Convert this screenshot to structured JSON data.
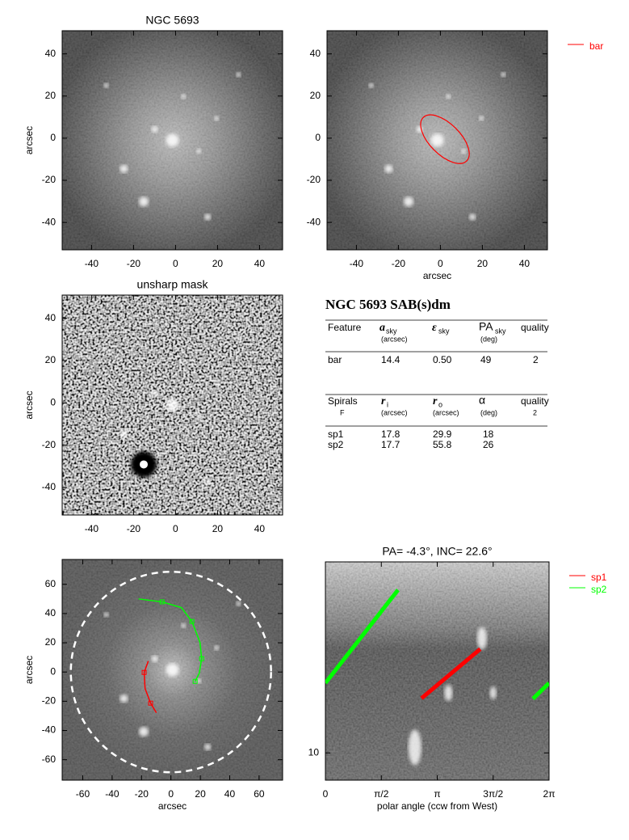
{
  "chart_data": [
    {
      "type": "image",
      "title": "NGC 5693",
      "ylabel": "arcsec",
      "xlim": [
        -54,
        51
      ],
      "ylim": [
        -53,
        51
      ],
      "xticks": [
        -40,
        -20,
        0,
        20,
        40
      ],
      "yticks": [
        -40,
        -20,
        0,
        20,
        40
      ]
    },
    {
      "type": "image",
      "xlabel": "arcsec",
      "xlim": [
        -54,
        51
      ],
      "ylim": [
        -53,
        51
      ],
      "xticks": [
        -40,
        -20,
        0,
        20,
        40
      ],
      "yticks": [
        -40,
        -20,
        0,
        20,
        40
      ],
      "legend": "right",
      "legend_entries": [
        {
          "name": "bar",
          "color": "#ff0000"
        }
      ]
    },
    {
      "type": "image",
      "title": "unsharp mask",
      "ylabel": "arcsec",
      "xlim": [
        -54,
        51
      ],
      "ylim": [
        -53,
        51
      ],
      "xticks": [
        -40,
        -20,
        0,
        20,
        40
      ],
      "yticks": [
        -40,
        -20,
        0,
        20,
        40
      ]
    },
    {
      "type": "image",
      "xlabel": "arcsec",
      "ylabel": "arcsec",
      "xlim": [
        -74,
        76
      ],
      "ylim": [
        -74,
        77
      ],
      "xticks": [
        -60,
        -40,
        -20,
        0,
        20,
        40,
        60
      ],
      "yticks": [
        -60,
        -40,
        -20,
        0,
        20,
        40,
        60
      ],
      "series": [
        {
          "color": "#00ff00",
          "x": [
            -22,
            -6,
            7.2,
            14.3,
            19.8,
            20.9,
            19.3,
            16.5
          ],
          "values": [
            50,
            48,
            44,
            34.6,
            20.2,
            9.1,
            -0.8,
            -6.4
          ]
        },
        {
          "color": "#ff0000",
          "x": [
            -15.4,
            -18.2,
            -17.6,
            -13.8,
            -9.9
          ],
          "values": [
            7.5,
            -0.3,
            -11.3,
            -21.3,
            -27.9
          ]
        }
      ]
    },
    {
      "type": "line",
      "title": "PA=  -4.3°, INC=  22.6°",
      "xlabel": "polar angle (ccw from West)",
      "xlim": [
        0,
        6.2832
      ],
      "ylim": [
        7.5,
        75
      ],
      "ylog": true,
      "xticks": [
        0,
        {
          "value": 1.5708,
          "label": "π/2"
        },
        {
          "value": 3.1416,
          "label": "π"
        },
        {
          "value": 4.7124,
          "label": "3π/2"
        },
        {
          "value": 6.2832,
          "label": "2π"
        }
      ],
      "yticks": [
        10
      ],
      "legend": "right",
      "series": [
        {
          "name": "sp1",
          "color": "#ff0000",
          "x": [
            2.7,
            4.35
          ],
          "values": [
            17.8,
            29.9
          ]
        },
        {
          "name": "sp2",
          "color": "#00ff00",
          "x": [
            0,
            2.04,
            null,
            5.83,
            6.2832
          ],
          "values": [
            20.9,
            55.8,
            null,
            17.7,
            20.9
          ]
        }
      ]
    }
  ],
  "table": {
    "title": "NGC 5693  SAB(s)dm",
    "bar_header": {
      "feature": "Feature",
      "a": "a",
      "a_sub": "sky",
      "a_unit": "(arcsec)",
      "eps": "ε",
      "eps_sub": "sky",
      "pa": "PA",
      "pa_sub": "sky",
      "pa_unit": "(deg)",
      "quality": "quality"
    },
    "bar_row": [
      "bar",
      "14.4",
      "0.50",
      "49",
      "2"
    ],
    "spiral_header": {
      "label": "Spirals",
      "f": "F",
      "ri": "r",
      "ri_sub": "i",
      "ri_unit": "(arcsec)",
      "ro": "r",
      "ro_sub": "o",
      "ro_unit": "(arcsec)",
      "alpha": "α",
      "alpha_unit": "(deg)",
      "quality": "quality",
      "quality_value": "2"
    },
    "spiral_rows": [
      [
        "sp1",
        "17.8",
        "29.9",
        "18"
      ],
      [
        "sp2",
        "17.7",
        "55.8",
        "26"
      ]
    ]
  }
}
